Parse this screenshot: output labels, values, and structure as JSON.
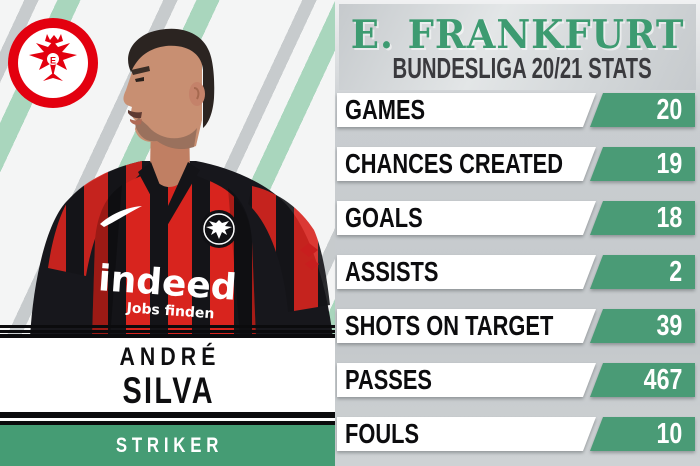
{
  "club": {
    "title": "E. FRANKFURT",
    "subtitle": "BUNDESLIGA 20/21 STATS"
  },
  "player": {
    "first_name": "ANDRÉ",
    "last_name": "SILVA",
    "position": "STRIKER"
  },
  "shirt": {
    "sponsor": "indeed",
    "sponsor_tagline": "Jobs finden"
  },
  "stats": [
    {
      "label": "GAMES",
      "value": "20"
    },
    {
      "label": "CHANCES CREATED",
      "value": "19"
    },
    {
      "label": "GOALS",
      "value": "18"
    },
    {
      "label": "ASSISTS",
      "value": "2"
    },
    {
      "label": "SHOTS ON TARGET",
      "value": "39"
    },
    {
      "label": "PASSES",
      "value": "467"
    },
    {
      "label": "FOULS",
      "value": "10"
    }
  ],
  "colors": {
    "green": "#4a9b76",
    "title_green": "#3d9b71",
    "black": "#0b0b0d",
    "crest_red": "#e3000f",
    "shirt_red": "#d8241e",
    "silver": "#c9cdd0",
    "mint_stripe": "#a9d6bd"
  },
  "chart_data": {
    "type": "table",
    "title": "E. FRANKFURT",
    "subtitle": "BUNDESLIGA 20/21 STATS",
    "categories": [
      "GAMES",
      "CHANCES CREATED",
      "GOALS",
      "ASSISTS",
      "SHOTS ON TARGET",
      "PASSES",
      "FOULS"
    ],
    "values": [
      20,
      19,
      18,
      2,
      39,
      467,
      10
    ]
  }
}
